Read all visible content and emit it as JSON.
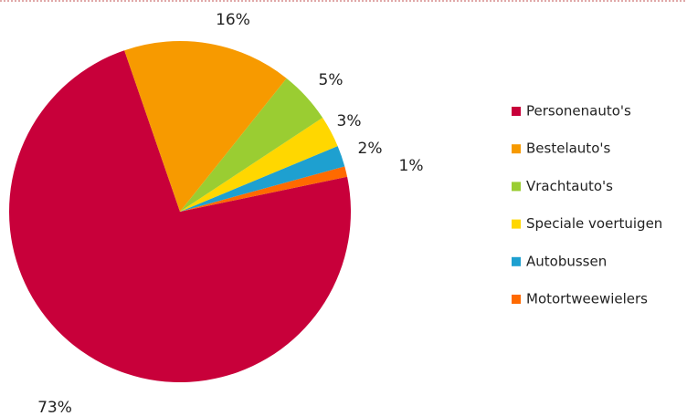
{
  "chart_data": {
    "type": "pie",
    "categories": [
      "Personenauto's",
      "Bestelauto's",
      "Vrachtauto's",
      "Speciale voertuigen",
      "Autobussen",
      "Motortweewielers"
    ],
    "values": [
      73,
      16,
      5,
      3,
      2,
      1
    ],
    "value_labels": [
      "73%",
      "16%",
      "5%",
      "3%",
      "2%",
      "1%"
    ],
    "colors": [
      "#c8003a",
      "#f79a00",
      "#9acd32",
      "#ffd700",
      "#1ea0d0",
      "#ff6a00"
    ],
    "legend": "right"
  }
}
